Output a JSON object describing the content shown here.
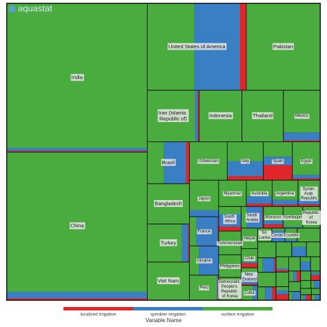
{
  "chart_data": {
    "type": "treemap",
    "logo": "aquastat",
    "legend_title": "Variable.Name",
    "categories": [
      "India",
      "China",
      "United States of America",
      "Pakistan",
      "Iran (Islamic Republic of)",
      "Indonesia",
      "Thailand",
      "Mexico",
      "Brazil",
      "Bangladesh",
      "Turkey",
      "Viet Nam",
      "Uzbekistan",
      "Italy",
      "Spain",
      "Egypt",
      "Japan",
      "France",
      "Ukraine",
      "Peru",
      "Myanmar",
      "Australia",
      "Argentina",
      "Syrian Arab Republic",
      "South Africa",
      "Turkmenistan",
      "Philippines",
      "Democratic People's Republic of Korea",
      "Saudi Arabia",
      "Morocco",
      "Azerbaijan",
      "Republic of Korea",
      "Nepal",
      "Chile",
      "New Zealand",
      "Cuba",
      "Sri Lanka",
      "Canada",
      "Ecuador",
      null,
      null,
      null,
      null,
      null,
      null,
      null,
      null,
      null,
      null,
      null,
      null,
      null,
      null,
      null,
      null,
      null,
      null,
      null,
      null,
      null,
      null,
      null,
      null,
      null
    ],
    "series": [
      {
        "name": "localized irrigation",
        "color": "#e0262a",
        "values": [
          350,
          500,
          1100,
          0,
          150,
          0,
          0,
          100,
          300,
          0,
          100,
          0,
          0,
          300,
          900,
          100,
          0,
          50,
          0,
          50,
          0,
          150,
          100,
          100,
          200,
          0,
          0,
          0,
          50,
          150,
          0,
          0,
          0,
          150,
          50,
          0,
          0,
          0,
          0,
          0,
          0,
          50,
          0,
          100,
          0,
          0,
          0,
          50,
          0,
          150,
          0,
          0,
          0,
          80,
          0,
          0,
          0,
          100,
          0,
          0,
          0,
          60,
          0,
          0
        ]
      },
      {
        "name": "sprinkler irrigation",
        "color": "#3a7fc4",
        "values": [
          850,
          1900,
          8200,
          0,
          300,
          0,
          0,
          600,
          1900,
          0,
          500,
          0,
          0,
          1100,
          500,
          200,
          400,
          1300,
          1200,
          50,
          0,
          400,
          250,
          200,
          600,
          0,
          0,
          0,
          700,
          150,
          50,
          0,
          0,
          50,
          400,
          150,
          0,
          300,
          50,
          0,
          0,
          350,
          0,
          200,
          0,
          300,
          0,
          50,
          0,
          100,
          0,
          200,
          0,
          80,
          0,
          150,
          0,
          50,
          0,
          100,
          0,
          30,
          0,
          60
        ]
      },
      {
        "name": "surface irrigation",
        "color": "#4aac3e",
        "values": [
          41800,
          40400,
          8400,
          13200,
          5050,
          4550,
          4400,
          3200,
          1440,
          3500,
          2700,
          3300,
          3000,
          1450,
          900,
          1900,
          1800,
          410,
          560,
          1400,
          1500,
          850,
          1050,
          900,
          340,
          1100,
          1050,
          1050,
          240,
          575,
          825,
          770,
          700,
          450,
          150,
          350,
          400,
          75,
          300,
          650,
          600,
          150,
          550,
          200,
          480,
          150,
          420,
          300,
          380,
          100,
          340,
          100,
          280,
          100,
          240,
          60,
          200,
          30,
          170,
          50,
          140,
          30,
          110,
          40
        ]
      }
    ]
  }
}
